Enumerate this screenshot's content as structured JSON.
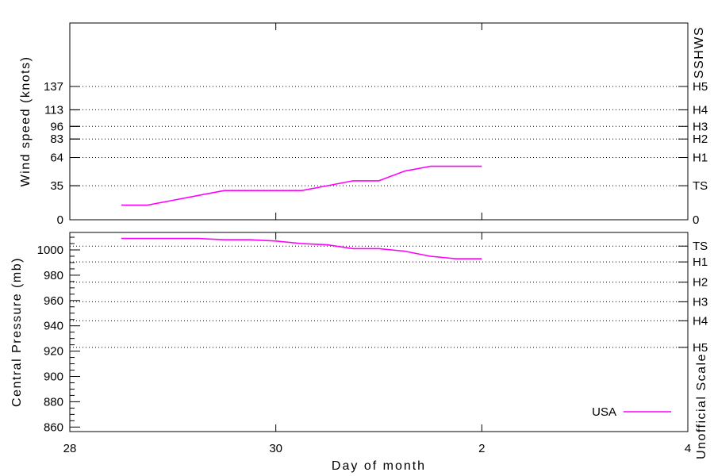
{
  "figure": {
    "background": "#ffffff",
    "series_color": "#ff00ff",
    "legend_label": "USA",
    "xlabel": "Day of month"
  },
  "chart_data": [
    {
      "type": "line",
      "title": "",
      "panel": "wind-speed",
      "ylabel": "Wind speed (knots)",
      "y2label": "SSHWS",
      "xlabel": "Day of month",
      "x_tick_labels": [
        "28",
        "30",
        "2",
        "4"
      ],
      "x_tick_days": [
        0,
        2,
        4,
        6
      ],
      "x_note": "day offset: 0 = day 28, month rolls over after day 30",
      "xlim": [
        0,
        6
      ],
      "ylim": [
        0,
        202
      ],
      "yticks": [
        0,
        35,
        64,
        83,
        96,
        113,
        137
      ],
      "y2_categories": [
        {
          "label": "0",
          "kt": 0,
          "dotted": false
        },
        {
          "label": "TS",
          "kt": 35,
          "dotted": true
        },
        {
          "label": "H1",
          "kt": 64,
          "dotted": true
        },
        {
          "label": "H2",
          "kt": 83,
          "dotted": true
        },
        {
          "label": "H3",
          "kt": 96,
          "dotted": true
        },
        {
          "label": "H4",
          "kt": 113,
          "dotted": true
        },
        {
          "label": "H5",
          "kt": 137,
          "dotted": true
        }
      ],
      "grid": "dotted horizontal lines at SSHWS thresholds",
      "legend_position": "none",
      "series": [
        {
          "name": "USA",
          "x": [
            0.5,
            0.75,
            1.0,
            1.25,
            1.5,
            1.75,
            2.0,
            2.25,
            2.5,
            2.75,
            3.0,
            3.25,
            3.5,
            3.75,
            4.0
          ],
          "y": [
            15,
            15,
            20,
            25,
            30,
            30,
            30,
            30,
            35,
            40,
            40,
            50,
            55,
            55,
            55
          ]
        }
      ]
    },
    {
      "type": "line",
      "title": "",
      "panel": "central-pressure",
      "ylabel": "Central Pressure (mb)",
      "y2label": "Unofficial Scale",
      "xlabel": "Day of month",
      "x_tick_labels": [
        "28",
        "30",
        "2",
        "4"
      ],
      "x_tick_days": [
        0,
        2,
        4,
        6
      ],
      "xlim": [
        0,
        6
      ],
      "ylim": [
        1014,
        856
      ],
      "yticks": [
        1000,
        980,
        960,
        940,
        920,
        900,
        880,
        860
      ],
      "y_minor_step": 5,
      "y2_categories": [
        {
          "label": "TS",
          "mb": 1003,
          "dotted": true
        },
        {
          "label": "H1",
          "mb": 990.5,
          "dotted": true
        },
        {
          "label": "H2",
          "mb": 974.5,
          "dotted": true
        },
        {
          "label": "H3",
          "mb": 959,
          "dotted": true
        },
        {
          "label": "H4",
          "mb": 944,
          "dotted": true
        },
        {
          "label": "H5",
          "mb": 923,
          "dotted": true
        }
      ],
      "grid": "dotted horizontal lines at unofficial pressure thresholds",
      "legend_position": "bottom-right-inside",
      "legend": [
        "USA"
      ],
      "series": [
        {
          "name": "USA",
          "x": [
            0.5,
            0.75,
            1.0,
            1.25,
            1.5,
            1.75,
            2.0,
            2.25,
            2.5,
            2.75,
            3.0,
            3.25,
            3.5,
            3.75,
            4.0
          ],
          "y": [
            1009,
            1009,
            1009,
            1009,
            1008,
            1008,
            1007,
            1005,
            1004,
            1001,
            1001,
            999,
            995,
            993,
            993
          ]
        }
      ]
    }
  ]
}
